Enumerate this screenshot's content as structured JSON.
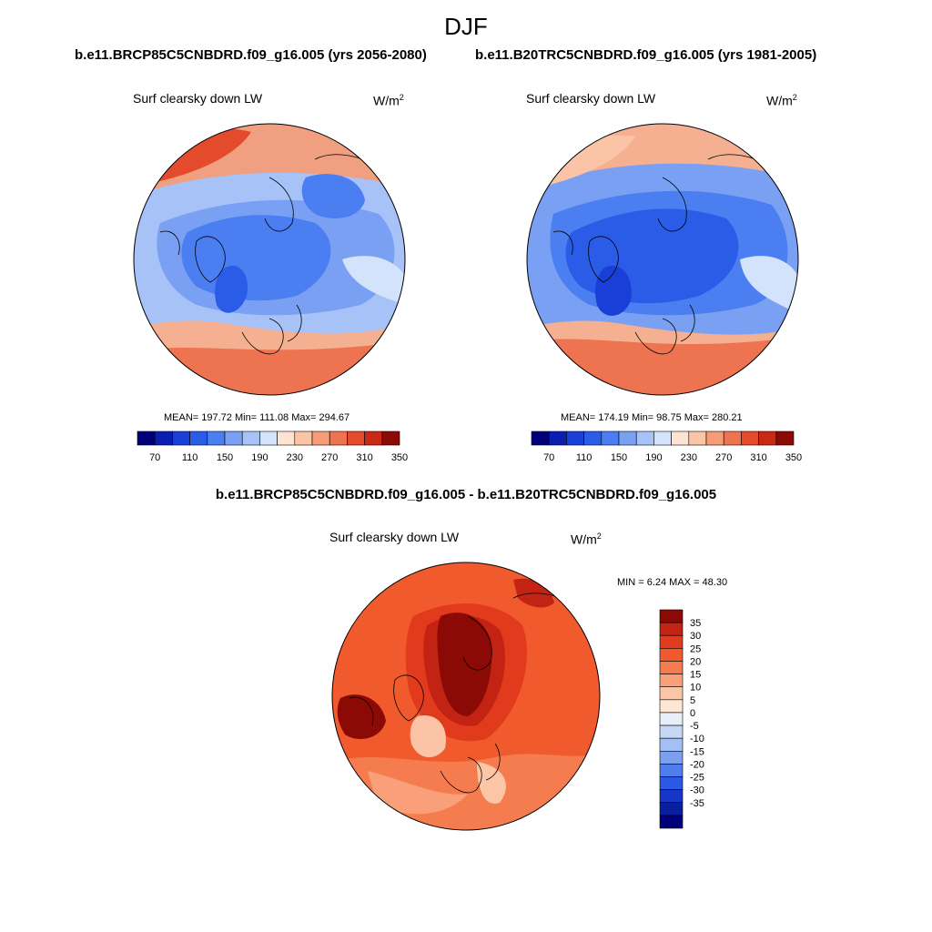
{
  "figure": {
    "season": "DJF",
    "panel_a": {
      "run": "b.e11.BRCP85C5CNBDRD.f09_g16.005 (yrs 2056-2080)",
      "variable": "Surf clearsky down LW",
      "units_base": "W/m",
      "units_exp": "2",
      "stats": "MEAN= 197.72  Min= 111.08  Max= 294.67"
    },
    "panel_b": {
      "run": "b.e11.B20TRC5CNBDRD.f09_g16.005 (yrs 1981-2005)",
      "variable": "Surf clearsky down LW",
      "units_base": "W/m",
      "units_exp": "2",
      "stats": "MEAN= 174.19  Min=  98.75  Max= 280.21"
    },
    "panel_diff": {
      "title": "b.e11.BRCP85C5CNBDRD.f09_g16.005 - b.e11.B20TRC5CNBDRD.f09_g16.005",
      "variable": "Surf clearsky down LW",
      "units_base": "W/m",
      "units_exp": "2",
      "stats": "MIN =   6.24 MAX =  48.30"
    }
  },
  "colorbar_abs": {
    "colors": [
      "#00007a",
      "#0a1fb0",
      "#1a3fd8",
      "#2a5ce8",
      "#4b7ef0",
      "#7aa0f3",
      "#a6c2f7",
      "#d3e3fb",
      "#fde4d2",
      "#fbc4a6",
      "#f69c78",
      "#ee7350",
      "#e44a2c",
      "#c92a16",
      "#8c0a06"
    ],
    "labels": [
      "70",
      "110",
      "150",
      "190",
      "230",
      "270",
      "310",
      "350"
    ]
  },
  "colorbar_diff": {
    "colors": [
      "#8c0a06",
      "#c32312",
      "#e23a1c",
      "#f05a2c",
      "#f57c4e",
      "#f9a07a",
      "#fcc6a6",
      "#fde6d3",
      "#e8eff8",
      "#c7d8f6",
      "#a4bff4",
      "#7ba0f0",
      "#4f7eec",
      "#2a5ae4",
      "#1536c8",
      "#0a1fa0",
      "#00007a"
    ],
    "labels": [
      "35",
      "30",
      "25",
      "20",
      "15",
      "10",
      "5",
      "0",
      "-5",
      "-10",
      "-15",
      "-20",
      "-25",
      "-30",
      "-35"
    ]
  }
}
